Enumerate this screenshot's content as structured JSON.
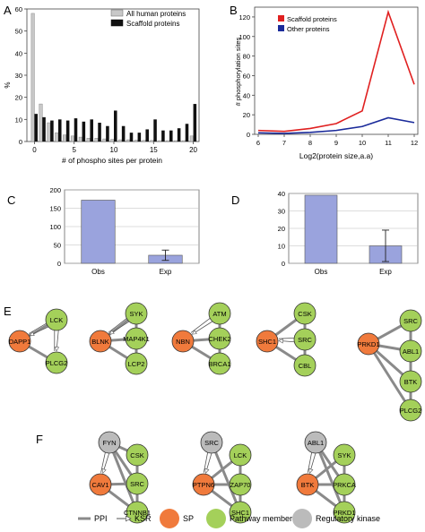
{
  "panels": {
    "a": {
      "letter": "A"
    },
    "b": {
      "letter": "B"
    },
    "c": {
      "letter": "C"
    },
    "d": {
      "letter": "D"
    },
    "e": {
      "letter": "E"
    },
    "f": {
      "letter": "F"
    }
  },
  "colors": {
    "all_human": "#c8c8c8",
    "scaffold_bar": "#111111",
    "scaffold_line": "#e02020",
    "other_line": "#1a2a9a",
    "obs_exp_bar": "#9aa3dd",
    "sp_node": "#f07a3c",
    "pathway_node": "#a4d05a",
    "kinase_node": "#bbbbbb",
    "ppi_edge": "#8a8a8a"
  },
  "chart_data": [
    {
      "id": "A",
      "type": "bar",
      "title": "",
      "xlabel": "# of phospho sites per protein",
      "ylabel": "%",
      "ylim": [
        0,
        60
      ],
      "yticks": [
        "0",
        "10",
        "20",
        "30",
        "40",
        "50",
        "60"
      ],
      "xticks": [
        "0",
        "5",
        "10",
        "15",
        "20"
      ],
      "x": [
        0,
        1,
        2,
        3,
        4,
        5,
        6,
        7,
        8,
        9,
        10,
        11,
        12,
        13,
        14,
        15,
        16,
        17,
        18,
        19,
        20
      ],
      "legend_position": "top-right",
      "series": [
        {
          "name": "All human proteins",
          "values": [
            58,
            17,
            8.5,
            4,
            3,
            2.5,
            2,
            1.5,
            1.5,
            1.2,
            1,
            0.8,
            0.8,
            0.6,
            0.5,
            0.5,
            0.4,
            0.4,
            0.4,
            0.4,
            2.5
          ]
        },
        {
          "name": "Scaffold proteins",
          "values": [
            12.5,
            11,
            9.5,
            10,
            9.5,
            10.5,
            9,
            10,
            8.5,
            7,
            14,
            7,
            4,
            4,
            5.5,
            10,
            5,
            5,
            6,
            8,
            17
          ]
        }
      ],
      "visible_positions": [
        0,
        1,
        2,
        3,
        4,
        5,
        6,
        7,
        8,
        9,
        10,
        11,
        12,
        13,
        14,
        15,
        16,
        17,
        18,
        19,
        20
      ]
    },
    {
      "id": "B",
      "type": "line",
      "title": "",
      "xlabel": "Log2(protein size,a.a)",
      "ylabel": "# phosphorylation sites",
      "x": [
        6,
        7,
        8,
        9,
        10,
        11,
        12
      ],
      "xlim": [
        6,
        12
      ],
      "ylim": [
        0,
        130
      ],
      "yticks": [
        "0",
        "20",
        "40",
        "60",
        "80",
        "100",
        "120"
      ],
      "xticks": [
        "6",
        "7",
        "8",
        "9",
        "10",
        "11",
        "12"
      ],
      "legend_position": "top-left",
      "series": [
        {
          "name": "Scaffold proteins",
          "values": [
            4,
            3,
            6,
            11,
            24,
            125,
            51
          ]
        },
        {
          "name": "Other proteins",
          "values": [
            1.5,
            1,
            2,
            4,
            8,
            17,
            12
          ]
        }
      ]
    },
    {
      "id": "C",
      "type": "bar",
      "title": "",
      "categories": [
        "Obs",
        "Exp"
      ],
      "values": [
        172,
        22
      ],
      "errors": [
        null,
        14
      ],
      "ylim": [
        0,
        200
      ],
      "yticks": [
        "0",
        "50",
        "100",
        "150",
        "200"
      ]
    },
    {
      "id": "D",
      "type": "bar",
      "title": "",
      "categories": [
        "Obs",
        "Exp"
      ],
      "values": [
        39,
        10
      ],
      "errors": [
        null,
        9
      ],
      "ylim": [
        0,
        40
      ],
      "yticks": [
        "0",
        "10",
        "20",
        "30",
        "40"
      ]
    }
  ],
  "networks_e": [
    {
      "nodes": [
        {
          "id": "dapp1",
          "label": "DAPP1",
          "kind": "sp"
        },
        {
          "id": "lck",
          "label": "LCK",
          "kind": "pathway"
        },
        {
          "id": "plcg2",
          "label": "PLCG2",
          "kind": "pathway"
        }
      ],
      "ppi": [
        [
          "dapp1",
          "lck"
        ],
        [
          "dapp1",
          "plcg2"
        ]
      ],
      "ksr": [
        [
          "lck",
          "dapp1"
        ],
        [
          "lck",
          "plcg2"
        ]
      ]
    },
    {
      "nodes": [
        {
          "id": "blnk",
          "label": "BLNK",
          "kind": "sp"
        },
        {
          "id": "syk",
          "label": "SYK",
          "kind": "pathway"
        },
        {
          "id": "map4k1",
          "label": "MAP4K1",
          "kind": "pathway"
        },
        {
          "id": "lcp2",
          "label": "LCP2",
          "kind": "pathway"
        }
      ],
      "ppi": [
        [
          "blnk",
          "syk"
        ],
        [
          "blnk",
          "map4k1"
        ],
        [
          "blnk",
          "lcp2"
        ],
        [
          "syk",
          "map4k1"
        ],
        [
          "map4k1",
          "lcp2"
        ]
      ],
      "ksr": [
        [
          "syk",
          "blnk"
        ]
      ]
    },
    {
      "nodes": [
        {
          "id": "nbn",
          "label": "NBN",
          "kind": "sp"
        },
        {
          "id": "atm",
          "label": "ATM",
          "kind": "pathway"
        },
        {
          "id": "chek2",
          "label": "CHEK2",
          "kind": "pathway"
        },
        {
          "id": "brca1",
          "label": "BRCA1",
          "kind": "pathway"
        }
      ],
      "ppi": [
        [
          "nbn",
          "chek2"
        ],
        [
          "nbn",
          "brca1"
        ],
        [
          "atm",
          "chek2"
        ],
        [
          "chek2",
          "brca1"
        ]
      ],
      "ksr": [
        [
          "atm",
          "nbn"
        ]
      ]
    },
    {
      "nodes": [
        {
          "id": "shc1",
          "label": "SHC1",
          "kind": "sp"
        },
        {
          "id": "csk",
          "label": "CSK",
          "kind": "pathway"
        },
        {
          "id": "src",
          "label": "SRC",
          "kind": "pathway"
        },
        {
          "id": "cbl",
          "label": "CBL",
          "kind": "pathway"
        }
      ],
      "ppi": [
        [
          "shc1",
          "csk"
        ],
        [
          "shc1",
          "cbl"
        ],
        [
          "csk",
          "src"
        ],
        [
          "src",
          "cbl"
        ]
      ],
      "ksr": [
        [
          "src",
          "shc1"
        ]
      ]
    },
    {
      "nodes": [
        {
          "id": "prkd1",
          "label": "PRKD1",
          "kind": "sp"
        },
        {
          "id": "src2",
          "label": "SRC",
          "kind": "pathway"
        },
        {
          "id": "abl1",
          "label": "ABL1",
          "kind": "pathway"
        },
        {
          "id": "btk",
          "label": "BTK",
          "kind": "pathway"
        },
        {
          "id": "plcg2b",
          "label": "PLCG2",
          "kind": "pathway"
        }
      ],
      "ppi": [
        [
          "prkd1",
          "src2"
        ],
        [
          "prkd1",
          "abl1"
        ],
        [
          "prkd1",
          "btk"
        ],
        [
          "prkd1",
          "plcg2b"
        ],
        [
          "src2",
          "abl1"
        ],
        [
          "abl1",
          "btk"
        ],
        [
          "btk",
          "plcg2b"
        ]
      ],
      "ksr": []
    }
  ],
  "networks_f": [
    {
      "nodes": [
        {
          "id": "fyn",
          "label": "FYN",
          "kind": "kinase"
        },
        {
          "id": "cav1",
          "label": "CAV1",
          "kind": "sp"
        },
        {
          "id": "csk",
          "label": "CSK",
          "kind": "pathway"
        },
        {
          "id": "src",
          "label": "SRC",
          "kind": "pathway"
        },
        {
          "id": "ctnnb1",
          "label": "CTNNB1",
          "kind": "pathway"
        }
      ],
      "ppi": [
        [
          "fyn",
          "csk"
        ],
        [
          "fyn",
          "src"
        ],
        [
          "fyn",
          "ctnnb1"
        ],
        [
          "cav1",
          "src"
        ],
        [
          "cav1",
          "ctnnb1"
        ],
        [
          "csk",
          "src"
        ],
        [
          "src",
          "ctnnb1"
        ]
      ],
      "ksr": [
        [
          "fyn",
          "cav1"
        ]
      ]
    },
    {
      "nodes": [
        {
          "id": "src",
          "label": "SRC",
          "kind": "kinase"
        },
        {
          "id": "ptpn6",
          "label": "PTPN6",
          "kind": "sp"
        },
        {
          "id": "lck",
          "label": "LCK",
          "kind": "pathway"
        },
        {
          "id": "zap70",
          "label": "ZAP70",
          "kind": "pathway"
        },
        {
          "id": "shc1",
          "label": "SHC1",
          "kind": "pathway"
        }
      ],
      "ppi": [
        [
          "src",
          "shc1"
        ],
        [
          "ptpn6",
          "lck"
        ],
        [
          "ptpn6",
          "zap70"
        ],
        [
          "ptpn6",
          "shc1"
        ],
        [
          "lck",
          "zap70"
        ],
        [
          "zap70",
          "shc1"
        ]
      ],
      "ksr": [
        [
          "src",
          "ptpn6"
        ]
      ]
    },
    {
      "nodes": [
        {
          "id": "abl1",
          "label": "ABL1",
          "kind": "kinase"
        },
        {
          "id": "btk",
          "label": "BTK",
          "kind": "sp"
        },
        {
          "id": "syk",
          "label": "SYK",
          "kind": "pathway"
        },
        {
          "id": "prkca",
          "label": "PRKCA",
          "kind": "pathway"
        },
        {
          "id": "prkd1",
          "label": "PRKD1",
          "kind": "pathway"
        }
      ],
      "ppi": [
        [
          "abl1",
          "prkca"
        ],
        [
          "abl1",
          "prkd1"
        ],
        [
          "btk",
          "syk"
        ],
        [
          "btk",
          "prkca"
        ],
        [
          "btk",
          "prkd1"
        ],
        [
          "syk",
          "prkca"
        ],
        [
          "prkca",
          "prkd1"
        ]
      ],
      "ksr": [
        [
          "abl1",
          "btk"
        ]
      ]
    }
  ],
  "legend": {
    "ppi": "PPI",
    "ksr": "KSR",
    "sp": "SP",
    "pathway": "Pathway member",
    "kinase": "Regulatory kinase"
  }
}
